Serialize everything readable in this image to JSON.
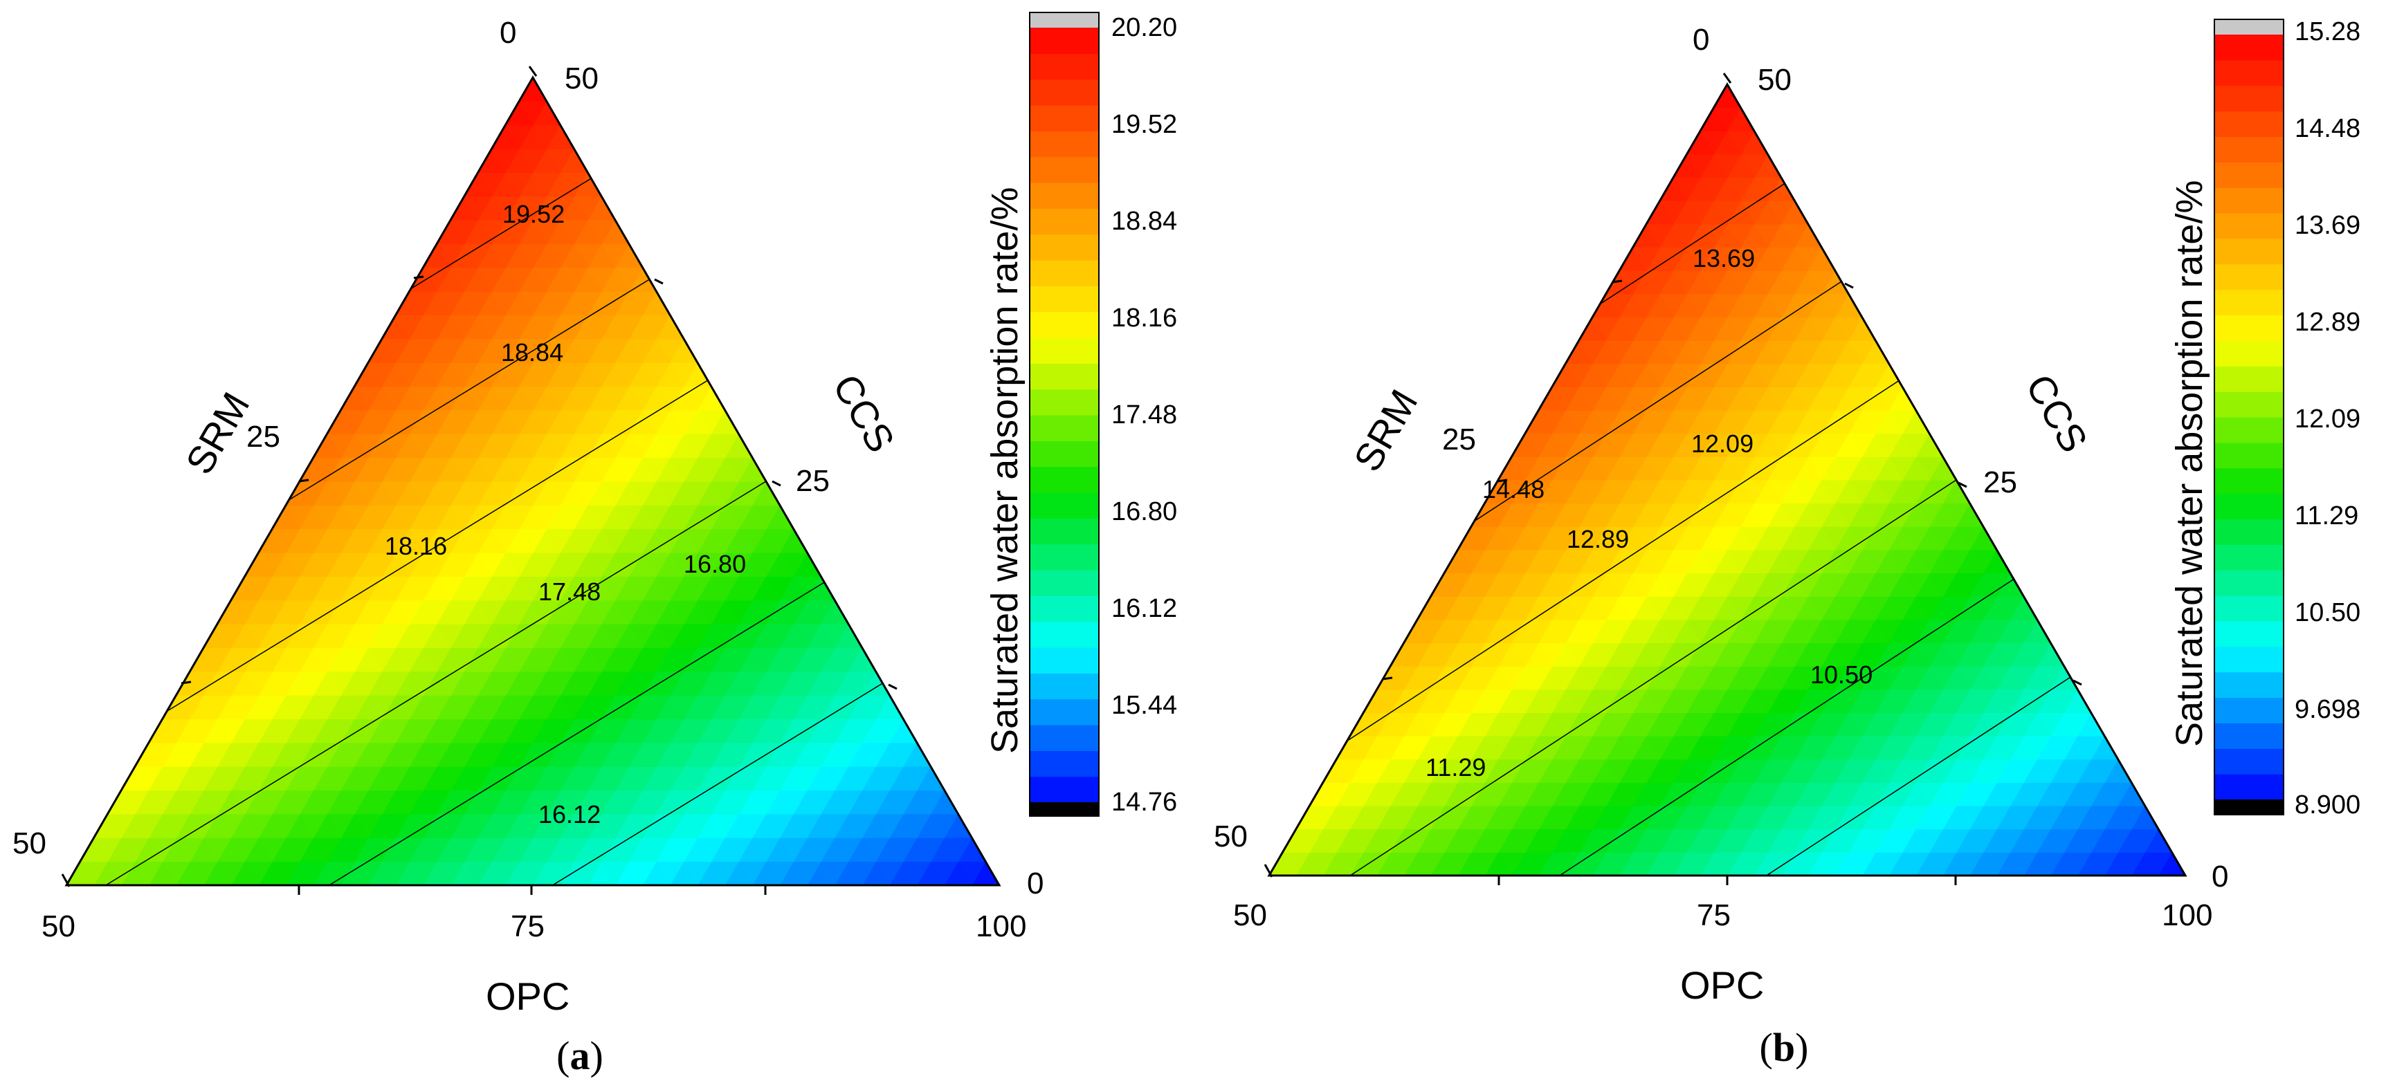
{
  "figure": {
    "panels": [
      {
        "id": "a",
        "panel_label": "a",
        "axes": {
          "bottom": "OPC",
          "left": "SRM",
          "right": "CCS"
        },
        "ticks": {
          "bottom_left": "50",
          "bottom_mid": "75",
          "bottom_right": "100",
          "left_top": "0",
          "left_mid": "25",
          "left_bottom": "50",
          "right_top": "50",
          "right_mid": "25",
          "right_bottom": "0"
        },
        "colorbar": {
          "label": "Saturated water absorption rate/%",
          "ticks": [
            "20.20",
            "19.52",
            "18.84",
            "18.16",
            "17.48",
            "16.80",
            "16.12",
            "15.44",
            "14.76"
          ]
        },
        "contours": [
          "19.52",
          "18.84",
          "18.16",
          "17.48",
          "16.80",
          "16.12"
        ]
      },
      {
        "id": "b",
        "panel_label": "b",
        "axes": {
          "bottom": "OPC",
          "left": "SRM",
          "right": "CCS"
        },
        "ticks": {
          "bottom_left": "50",
          "bottom_mid": "75",
          "bottom_right": "100",
          "left_top": "0",
          "left_mid": "25",
          "left_bottom": "50",
          "right_top": "50",
          "right_mid": "25",
          "right_bottom": "0"
        },
        "colorbar": {
          "label": "Saturated water absorption rate/%",
          "ticks": [
            "15.28",
            "14.48",
            "13.69",
            "12.89",
            "12.09",
            "11.29",
            "10.50",
            "9.698",
            "8.900"
          ]
        },
        "contours": [
          "14.48",
          "13.69",
          "12.89",
          "12.09",
          "11.29",
          "10.50"
        ]
      }
    ]
  },
  "chart_data": [
    {
      "type": "heatmap",
      "subtype": "ternary contour",
      "title": "(a)",
      "components": [
        "OPC",
        "SRM",
        "CCS"
      ],
      "axis_ranges": {
        "OPC": [
          50,
          100
        ],
        "SRM": [
          0,
          50
        ],
        "CCS": [
          0,
          50
        ]
      },
      "value_label": "Saturated water absorption rate/%",
      "value_range": [
        14.76,
        20.2
      ],
      "colorbar_ticks": [
        20.2,
        19.52,
        18.84,
        18.16,
        17.48,
        16.8,
        16.12,
        15.44,
        14.76
      ],
      "contour_levels": [
        19.52,
        18.84,
        18.16,
        17.48,
        16.8,
        16.12
      ],
      "corner_values": {
        "OPC50_SRM0_CCS50": 20.2,
        "OPC50_SRM50_CCS0": 17.6,
        "OPC100_SRM0_CCS0": 14.76
      },
      "colormap": [
        "#0000ff",
        "#00ffff",
        "#00e000",
        "#ffff00",
        "#ff8000",
        "#ff0000"
      ]
    },
    {
      "type": "heatmap",
      "subtype": "ternary contour",
      "title": "(b)",
      "components": [
        "OPC",
        "SRM",
        "CCS"
      ],
      "axis_ranges": {
        "OPC": [
          50,
          100
        ],
        "SRM": [
          0,
          50
        ],
        "CCS": [
          0,
          50
        ]
      },
      "value_label": "Saturated water absorption rate/%",
      "value_range": [
        8.9,
        15.28
      ],
      "colorbar_ticks": [
        15.28,
        14.48,
        13.69,
        12.89,
        12.09,
        11.29,
        10.5,
        9.698,
        8.9
      ],
      "contour_levels": [
        14.48,
        13.69,
        12.89,
        12.09,
        11.29,
        10.5
      ],
      "corner_values": {
        "OPC50_SRM0_CCS50": 15.28,
        "OPC50_SRM50_CCS0": 12.4,
        "OPC100_SRM0_CCS0": 8.9
      },
      "colormap": [
        "#0000ff",
        "#00ffff",
        "#00e000",
        "#ffff00",
        "#ff8000",
        "#ff0000"
      ]
    }
  ]
}
